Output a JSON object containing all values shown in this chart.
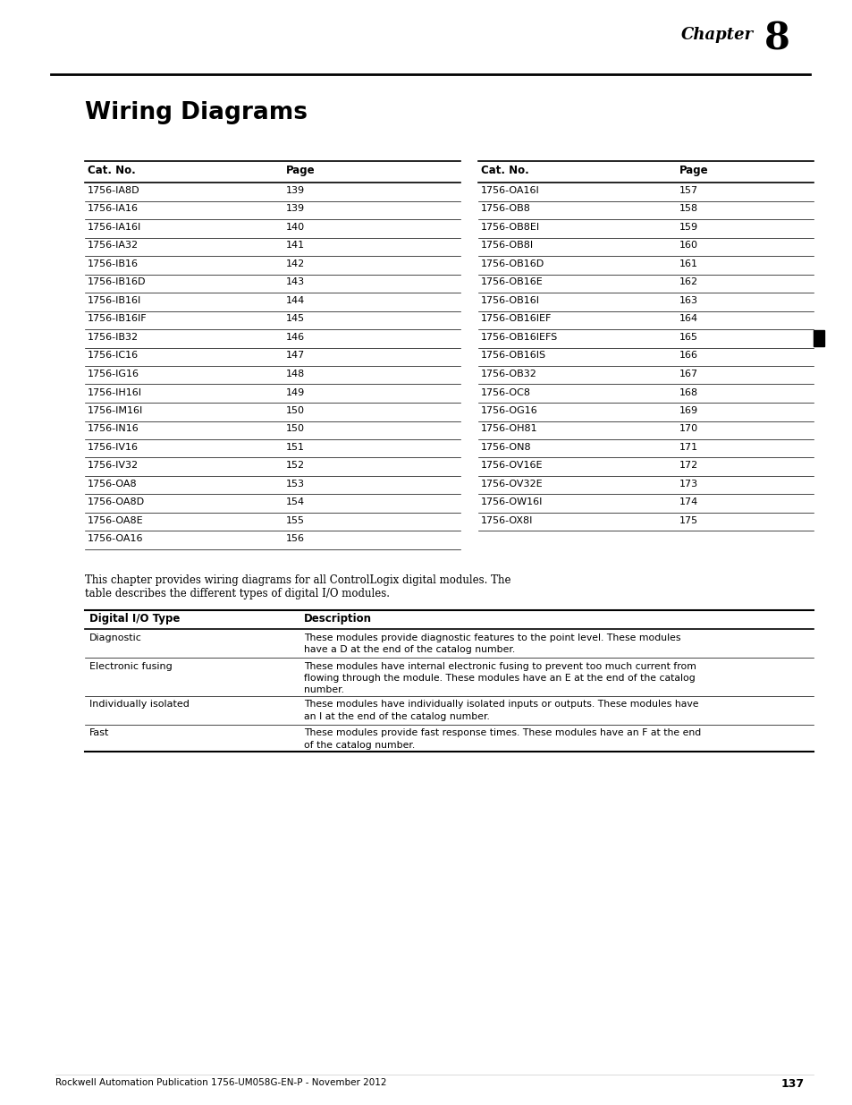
{
  "chapter_label": "Chapter",
  "chapter_number": "8",
  "title": "Wiring Diagrams",
  "left_table": {
    "headers": [
      "Cat. No.",
      "Page"
    ],
    "rows": [
      [
        "1756-IA8D",
        "139"
      ],
      [
        "1756-IA16",
        "139"
      ],
      [
        "1756-IA16I",
        "140"
      ],
      [
        "1756-IA32",
        "141"
      ],
      [
        "1756-IB16",
        "142"
      ],
      [
        "1756-IB16D",
        "143"
      ],
      [
        "1756-IB16I",
        "144"
      ],
      [
        "1756-IB16IF",
        "145"
      ],
      [
        "1756-IB32",
        "146"
      ],
      [
        "1756-IC16",
        "147"
      ],
      [
        "1756-IG16",
        "148"
      ],
      [
        "1756-IH16I",
        "149"
      ],
      [
        "1756-IM16I",
        "150"
      ],
      [
        "1756-IN16",
        "150"
      ],
      [
        "1756-IV16",
        "151"
      ],
      [
        "1756-IV32",
        "152"
      ],
      [
        "1756-OA8",
        "153"
      ],
      [
        "1756-OA8D",
        "154"
      ],
      [
        "1756-OA8E",
        "155"
      ],
      [
        "1756-OA16",
        "156"
      ]
    ]
  },
  "right_table": {
    "headers": [
      "Cat. No.",
      "Page"
    ],
    "rows": [
      [
        "1756-OA16I",
        "157"
      ],
      [
        "1756-OB8",
        "158"
      ],
      [
        "1756-OB8EI",
        "159"
      ],
      [
        "1756-OB8I",
        "160"
      ],
      [
        "1756-OB16D",
        "161"
      ],
      [
        "1756-OB16E",
        "162"
      ],
      [
        "1756-OB16I",
        "163"
      ],
      [
        "1756-OB16IEF",
        "164"
      ],
      [
        "1756-OB16IEFS",
        "165"
      ],
      [
        "1756-OB16IS",
        "166"
      ],
      [
        "1756-OB32",
        "167"
      ],
      [
        "1756-OC8",
        "168"
      ],
      [
        "1756-OG16",
        "169"
      ],
      [
        "1756-OH81",
        "170"
      ],
      [
        "1756-ON8",
        "171"
      ],
      [
        "1756-OV16E",
        "172"
      ],
      [
        "1756-OV32E",
        "173"
      ],
      [
        "1756-OW16I",
        "174"
      ],
      [
        "1756-OX8I",
        "175"
      ]
    ]
  },
  "intro_text1": "This chapter provides wiring diagrams for all ControlLogix digital modules. The",
  "intro_text2": "table describes the different types of digital I/O modules.",
  "io_table": {
    "headers": [
      "Digital I/O Type",
      "Description"
    ],
    "rows": [
      [
        "Diagnostic",
        "These modules provide diagnostic features to the point level. These modules\nhave a D at the end of the catalog number."
      ],
      [
        "Electronic fusing",
        "These modules have internal electronic fusing to prevent too much current from\nflowing through the module. These modules have an E at the end of the catalog\nnumber."
      ],
      [
        "Individually isolated",
        "These modules have individually isolated inputs or outputs. These modules have\nan I at the end of the catalog number."
      ],
      [
        "Fast",
        "These modules provide fast response times. These modules have an F at the end\nof the catalog number."
      ]
    ]
  },
  "footer_text": "Rockwell Automation Publication 1756-UM058G-EN-P - November 2012",
  "footer_page": "137",
  "bg_color": "#ffffff"
}
